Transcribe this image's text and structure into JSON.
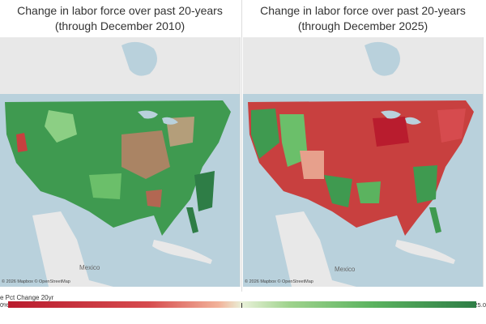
{
  "maps": [
    {
      "title": "Change in labor force over past 20-years (through December 2010)",
      "label": "Mexico",
      "attribution": "© 2026 Mapbox © OpenStreetMap",
      "dominant_color": "#3f9a50"
    },
    {
      "title": "Change in labor force over past 20-years (through December 2025)",
      "label": "Mexico",
      "attribution": "© 2026 Mapbox © OpenStreetMap",
      "dominant_color": "#c8403f"
    }
  ],
  "legend": {
    "title": "e Pct Change 20yr",
    "min_label": "0%",
    "max_label": "25.0",
    "colors": [
      "#b91c2e",
      "#f2b39a",
      "#e9f1d8",
      "#9fd38d",
      "#2e7d46"
    ]
  },
  "colors": {
    "water": "#b9d1dc",
    "land": "#e8e8e8",
    "green": "#3f9a50",
    "red": "#c8403f"
  }
}
